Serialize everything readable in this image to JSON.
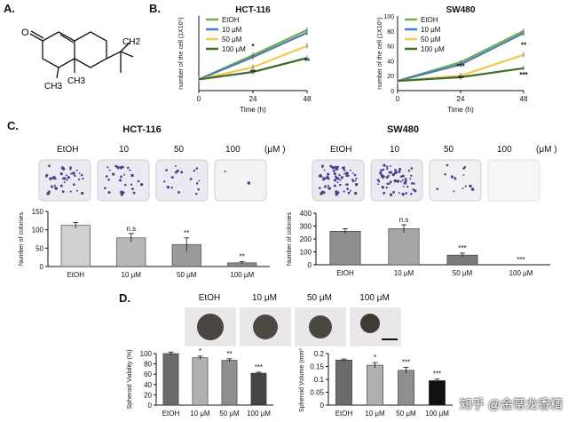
{
  "panels": {
    "A": {
      "letter": "A."
    },
    "B": {
      "letter": "B."
    },
    "C": {
      "letter": "C."
    },
    "D": {
      "letter": "D."
    }
  },
  "panelA": {
    "atom_labels": [
      "O",
      "CH3",
      "CH3",
      "CH2"
    ]
  },
  "panelC": {
    "hct_title": "HCT-116",
    "sw_title": "SW480",
    "dose_labels": [
      "EtOH",
      "10",
      "50",
      "100"
    ],
    "unit": "(μM )"
  },
  "panelD": {
    "spheroid_labels": [
      "EtOH",
      "10 μM",
      "50 μM",
      "100 μM"
    ]
  },
  "watermark": "知乎 @金蒂龙香精",
  "colors": {
    "etoh": "#6ab04c",
    "um10": "#4f79b8",
    "um50": "#f2c94c",
    "um100": "#3e6b2e",
    "bar_light": "#d0d0d0",
    "bar_mid": "#9a9a9a",
    "bar_dark": "#6b6b6b",
    "bar_black": "#1a1a1a"
  },
  "chart_data": [
    {
      "id": "hct-growth",
      "type": "line",
      "title": "HCT-116",
      "xlabel": "Time (h)",
      "ylabel": "number of the cell (1X10⁵)",
      "x": [
        0,
        24,
        48
      ],
      "xticks": [
        "0",
        "24",
        "48"
      ],
      "ylim": [
        0,
        80
      ],
      "legend": "top-left",
      "series": [
        {
          "name": "EtOH",
          "values": [
            12,
            38,
            65
          ],
          "color": "#6ab04c"
        },
        {
          "name": "10 μM",
          "values": [
            12,
            36,
            62
          ],
          "color": "#4f79b8"
        },
        {
          "name": "50 μM",
          "values": [
            12,
            25,
            48
          ],
          "color": "#f2c94c"
        },
        {
          "name": "100 μM",
          "values": [
            12,
            20,
            35
          ],
          "color": "#3e6b2e"
        }
      ],
      "annotations": [
        {
          "x": 24,
          "y": 45,
          "text": "*"
        },
        {
          "x": 24,
          "y": 17,
          "text": "**"
        },
        {
          "x": 48,
          "y": 29,
          "text": "**"
        }
      ]
    },
    {
      "id": "sw-growth",
      "type": "line",
      "title": "SW480",
      "xlabel": "Time (h)",
      "ylabel": "number of the cell (1X10⁵)",
      "x": [
        0,
        24,
        48
      ],
      "xticks": [
        "0",
        "24",
        "48"
      ],
      "yticks": [
        "0",
        "20",
        "40",
        "60",
        "80",
        "100"
      ],
      "ylim": [
        0,
        100
      ],
      "legend": "top-left",
      "series": [
        {
          "name": "EtOH",
          "values": [
            13,
            38,
            80
          ],
          "color": "#6ab04c"
        },
        {
          "name": "10 μM",
          "values": [
            13,
            35,
            77
          ],
          "color": "#4f79b8"
        },
        {
          "name": "50 μM",
          "values": [
            13,
            20,
            48
          ],
          "color": "#f2c94c"
        },
        {
          "name": "100 μM",
          "values": [
            13,
            18,
            30
          ],
          "color": "#3e6b2e"
        }
      ],
      "annotations": [
        {
          "x": 24,
          "y": 29,
          "text": "***"
        },
        {
          "x": 24,
          "y": 13,
          "text": "**"
        },
        {
          "x": 48,
          "y": 58,
          "text": "**"
        },
        {
          "x": 48,
          "y": 18,
          "text": "***"
        }
      ]
    },
    {
      "id": "hct-colonies",
      "type": "bar",
      "ylabel": "Number of colonies",
      "categories": [
        "EtOH",
        "10 μM",
        "50 μM",
        "100 μM"
      ],
      "values": [
        112,
        78,
        60,
        10
      ],
      "errors": [
        8,
        12,
        18,
        3
      ],
      "ylim": [
        0,
        150
      ],
      "yticks": [
        "0",
        "50",
        "100",
        "150"
      ],
      "labels": [
        "",
        "n.s",
        "**",
        "**"
      ]
    },
    {
      "id": "sw-colonies",
      "type": "bar",
      "ylabel": "Number of colonies",
      "categories": [
        "EtOH",
        "10 μM",
        "50 μM",
        "100 μM"
      ],
      "values": [
        260,
        280,
        75,
        0
      ],
      "errors": [
        20,
        30,
        15,
        0
      ],
      "ylim": [
        0,
        400
      ],
      "yticks": [
        "0",
        "100",
        "200",
        "300",
        "400"
      ],
      "labels": [
        "",
        "n.s",
        "***",
        "***"
      ]
    },
    {
      "id": "spheroid-viability",
      "type": "bar",
      "ylabel": "Spheroid Viability (%)",
      "categories": [
        "EtOH",
        "10 μM",
        "50 μM",
        "100 μM"
      ],
      "values": [
        100,
        92,
        87,
        62
      ],
      "errors": [
        3,
        3,
        3,
        2
      ],
      "ylim": [
        0,
        100
      ],
      "yticks": [
        "0",
        "20",
        "40",
        "60",
        "80",
        "100"
      ],
      "labels": [
        "",
        "*",
        "**",
        "***"
      ]
    },
    {
      "id": "spheroid-volume",
      "type": "bar",
      "ylabel": "Spheroid Volume (mm³)",
      "categories": [
        "EtOH",
        "10 μM",
        "50 μM",
        "100 μM"
      ],
      "values": [
        0.175,
        0.155,
        0.135,
        0.095
      ],
      "errors": [
        0.004,
        0.01,
        0.012,
        0.006
      ],
      "ylim": [
        0,
        0.2
      ],
      "yticks": [
        "0",
        "0.05",
        "0.1",
        "0.15",
        "0.2"
      ],
      "labels": [
        "",
        "*",
        "***",
        "***"
      ]
    }
  ]
}
